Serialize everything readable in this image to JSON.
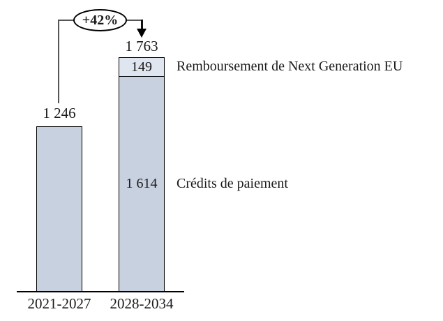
{
  "annotation": {
    "growth": "+42%"
  },
  "bars": {
    "left": {
      "total": "1 246",
      "category": "2021-2027"
    },
    "right": {
      "total": "1 763",
      "top_value": "149",
      "bottom_value": "1 614",
      "category": "2028-2034"
    }
  },
  "legend": {
    "top": "Remboursement de Next Generation EU",
    "bottom": "Crédits de paiement"
  },
  "colors": {
    "bar_main": "#c7d1e0",
    "bar_light": "#dfe6ef",
    "bracket_line": "#555555",
    "border": "#000000"
  },
  "chart_data": {
    "type": "bar",
    "categories": [
      "2021-2027",
      "2028-2034"
    ],
    "series": [
      {
        "name": "Crédits de paiement",
        "values": [
          1246,
          1614
        ],
        "color": "#c7d1e0"
      },
      {
        "name": "Remboursement de Next Generation EU",
        "values": [
          0,
          149
        ],
        "color": "#dfe6ef"
      }
    ],
    "totals": [
      1246,
      1763
    ],
    "stacked": true,
    "annotations": [
      {
        "text": "+42%",
        "type": "growth-between-bars",
        "from": "2021-2027",
        "to": "2028-2034"
      }
    ],
    "title": "",
    "xlabel": "",
    "ylabel": "",
    "ylim": [
      0,
      1763
    ],
    "grid": false,
    "legend_position": "right-of-segments",
    "value_format": "space-thousands"
  }
}
